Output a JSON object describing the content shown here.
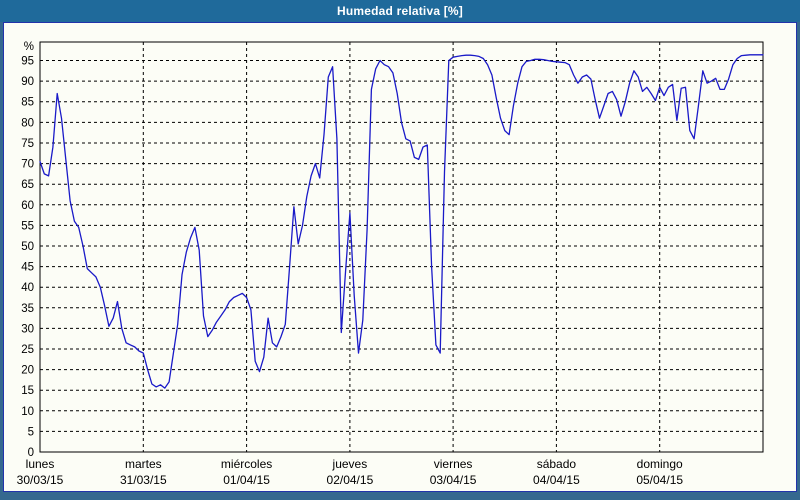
{
  "window": {
    "title": "Humedad relativa [%]"
  },
  "colors": {
    "titlebar_bg": "#1f6a9b",
    "frame_bg": "#35688f",
    "panel_bg": "#fcfdf6",
    "panel_border": "#2233aa",
    "line": "#1a1ac8",
    "grid": "#000000",
    "text": "#000000"
  },
  "chart_data": {
    "type": "line",
    "title": "Humedad relativa [%]",
    "ylabel": "%",
    "ylim": [
      0,
      99.5
    ],
    "y_ticks": [
      0,
      5,
      10,
      15,
      20,
      25,
      30,
      35,
      40,
      45,
      50,
      55,
      60,
      65,
      70,
      75,
      80,
      85,
      90,
      95
    ],
    "grid": "dashed",
    "legend": "none",
    "x_unit": "hours",
    "points_per_day": 24,
    "days": [
      {
        "name": "lunes",
        "date": "30/03/15"
      },
      {
        "name": "martes",
        "date": "31/03/15"
      },
      {
        "name": "miércoles",
        "date": "01/04/15"
      },
      {
        "name": "jueves",
        "date": "02/04/15"
      },
      {
        "name": "viernes",
        "date": "03/04/15"
      },
      {
        "name": "sábado",
        "date": "04/04/15"
      },
      {
        "name": "domingo",
        "date": "05/04/15"
      }
    ],
    "series": [
      {
        "name": "Humedad relativa",
        "values": [
          70.5,
          67.5,
          67,
          74,
          87,
          81,
          71,
          61,
          56,
          54.5,
          50,
          44.5,
          43.5,
          42.5,
          40,
          35.5,
          30.5,
          32.5,
          36.5,
          30,
          26.5,
          26,
          25.5,
          24.5,
          24,
          20,
          16.5,
          15.8,
          16.3,
          15.5,
          17,
          24,
          31,
          43,
          48.5,
          52,
          54.5,
          49,
          33,
          28,
          29.5,
          31.5,
          33,
          34.5,
          36.5,
          37.5,
          38,
          38.5,
          37.5,
          34.5,
          22,
          19.5,
          23,
          32.5,
          26.5,
          25.5,
          28,
          31,
          45,
          59.5,
          50.5,
          55,
          62,
          67,
          70,
          66.5,
          77,
          91,
          93.5,
          76,
          29,
          44,
          58,
          38,
          24,
          32,
          54,
          88,
          93,
          95,
          94,
          93.5,
          92,
          87,
          80,
          76,
          75.5,
          71.5,
          71,
          74,
          74.5,
          45,
          26,
          24,
          68,
          95,
          95.8,
          96,
          96.2,
          96.3,
          96.3,
          96.2,
          96,
          95.5,
          94,
          91.5,
          86,
          81,
          78,
          77,
          84,
          89.5,
          93.5,
          94.8,
          95,
          95.3,
          95.3,
          95.2,
          95,
          94.8,
          94.7,
          94.6,
          94.5,
          94,
          91.5,
          89.5,
          91,
          91.5,
          90.5,
          85.5,
          81,
          84,
          87,
          87.5,
          85.5,
          81.5,
          85,
          89.5,
          92.5,
          91,
          87.5,
          88.5,
          87,
          85.3,
          88.5,
          86.5,
          88.5,
          89.2,
          80.5,
          88.3,
          88.5,
          78,
          76,
          84,
          92.5,
          89.5,
          90,
          90.7,
          88,
          88,
          90.5,
          94,
          95.5,
          96.2,
          96.3,
          96.4,
          96.4,
          96.4,
          96.4
        ]
      }
    ]
  }
}
